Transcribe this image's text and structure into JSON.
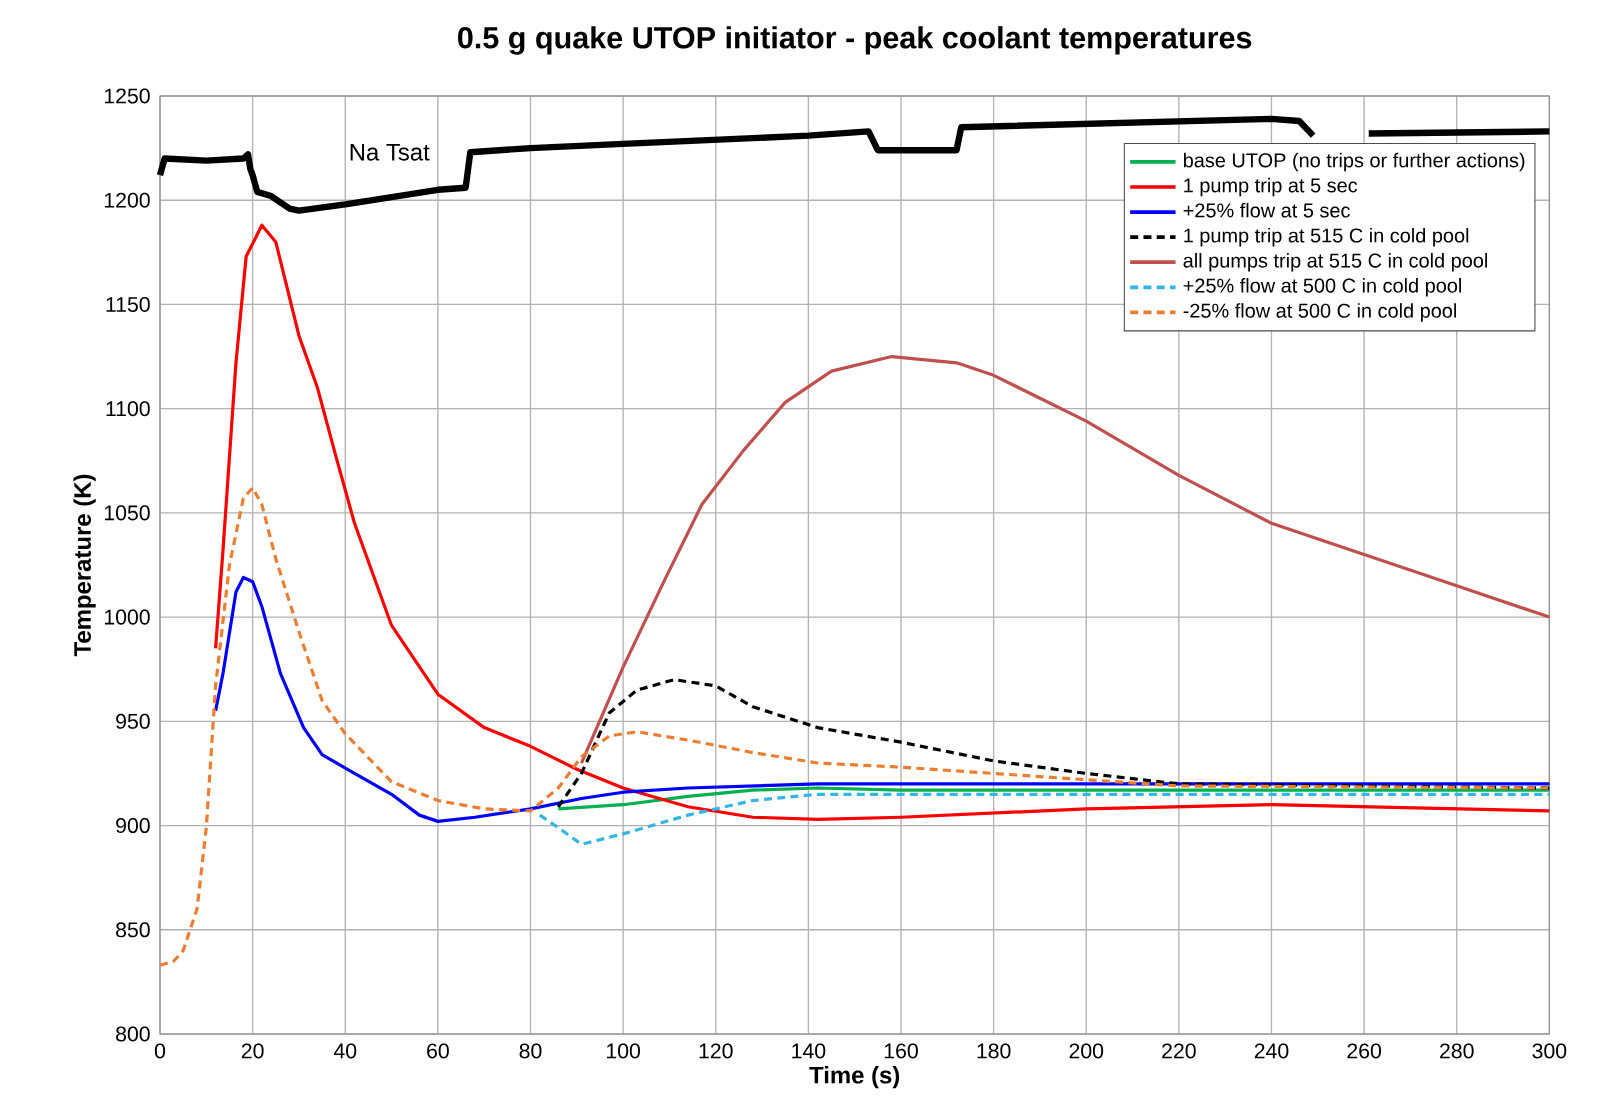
{
  "chart_data": {
    "type": "line",
    "title": "0.5 g quake UTOP initiator - peak coolant temperatures",
    "xlabel": "Time (s)",
    "ylabel": "Temperature (K)",
    "xlim": [
      0,
      300
    ],
    "ylim": [
      800,
      1250
    ],
    "xticks": [
      0,
      20,
      40,
      60,
      80,
      100,
      120,
      140,
      160,
      180,
      200,
      220,
      240,
      260,
      280,
      300
    ],
    "yticks": [
      800,
      850,
      900,
      950,
      1000,
      1050,
      1100,
      1150,
      1200,
      1250
    ],
    "grid": true,
    "legend": "top right",
    "marker": "none",
    "line_style": "solid",
    "annotations": [
      "Na Tsat"
    ],
    "series": [
      {
        "name": "base UTOP (no trips or further actions)",
        "color": "#00b050",
        "x": [
          86,
          100,
          114,
          128,
          142,
          160,
          200,
          250,
          300
        ],
        "values": [
          908,
          910,
          914,
          917,
          918,
          917,
          917,
          917,
          917
        ]
      },
      {
        "name": "1 pump trip at 5 sec",
        "color": "#ff0000",
        "x": [
          12,
          13.6,
          16.4,
          18.6,
          22,
          25,
          30,
          34,
          38,
          42,
          50,
          60,
          70,
          80,
          90,
          100,
          114,
          128,
          142,
          160,
          200,
          240,
          300
        ],
        "values": [
          985,
          1032,
          1122,
          1173,
          1188,
          1180,
          1135,
          1110,
          1077,
          1045,
          996,
          963,
          947,
          938,
          927,
          918,
          909,
          904,
          903,
          904,
          908,
          910,
          907
        ]
      },
      {
        "name": "+25% flow at 5 sec",
        "color": "#0000ff",
        "x": [
          12,
          13.6,
          16.4,
          18,
          20,
          22,
          26,
          31,
          35,
          42,
          50,
          56,
          60,
          68,
          80,
          91,
          100,
          114,
          128,
          142,
          200,
          300
        ],
        "values": [
          955,
          973,
          1012,
          1019,
          1017,
          1005,
          973,
          947,
          934,
          925,
          915,
          905,
          902,
          904,
          908,
          913,
          916,
          918,
          919,
          920,
          920,
          920
        ]
      },
      {
        "name": "1 pump trip at 515 C in cold pool",
        "color": "#000000",
        "line_style": "dashed",
        "x": [
          86,
          91,
          97,
          103,
          111,
          120,
          128,
          142,
          160,
          180,
          200,
          220,
          300
        ],
        "values": [
          909,
          925,
          954,
          965,
          970,
          967,
          957,
          947,
          940,
          931,
          925,
          920,
          918
        ]
      },
      {
        "name": "all pumps trip at 515 C in cold pool",
        "color": "#c0504d",
        "x": [
          91,
          100,
          109,
          117,
          126,
          135,
          145,
          158,
          172,
          180,
          200,
          220,
          240,
          260,
          280,
          300
        ],
        "values": [
          930,
          976,
          1018,
          1054,
          1080,
          1103,
          1118,
          1125,
          1122,
          1116,
          1094,
          1068,
          1045,
          1030,
          1015,
          1000
        ]
      },
      {
        "name": "+25% flow at 500 C in cold pool",
        "color": "#33b5e5",
        "line_style": "dashed",
        "x": [
          82,
          86,
          91,
          100,
          114,
          128,
          142,
          200,
          300
        ],
        "values": [
          905,
          899,
          891,
          896,
          905,
          912,
          915,
          915,
          915
        ]
      },
      {
        "name": "-25% flow at 500 C in cold pool",
        "color": "#ed7d31",
        "line_style": "dashed",
        "x": [
          0,
          3,
          5,
          8,
          10,
          12,
          15,
          18,
          20,
          22,
          25,
          30,
          35,
          40,
          50,
          60,
          70,
          80,
          86,
          91,
          97,
          103,
          114,
          128,
          142,
          160,
          180,
          200,
          220,
          300
        ],
        "values": [
          833,
          835,
          840,
          860,
          899,
          967,
          1025,
          1057,
          1062,
          1054,
          1028,
          993,
          960,
          944,
          921,
          912,
          908,
          907,
          918,
          933,
          943,
          945,
          941,
          935,
          930,
          928,
          925,
          922,
          919,
          918
        ]
      },
      {
        "color": "#000000",
        "x": [
          0,
          1,
          10,
          18,
          19,
          19.5,
          20,
          21,
          24,
          28,
          30,
          40,
          60,
          66,
          67,
          80,
          100,
          140,
          153,
          155,
          172,
          173,
          240,
          246,
          249,
          251,
          260,
          261,
          300
        ],
        "values": [
          1212,
          1220,
          1219,
          1220,
          1222,
          1215,
          1212,
          1204,
          1202,
          1196,
          1195,
          1198,
          1205,
          1206,
          1223,
          1225,
          1227,
          1231,
          1233,
          1224,
          1224,
          1235,
          1239,
          1238,
          1231,
          null,
          null,
          1232,
          1233
        ]
      }
    ]
  }
}
